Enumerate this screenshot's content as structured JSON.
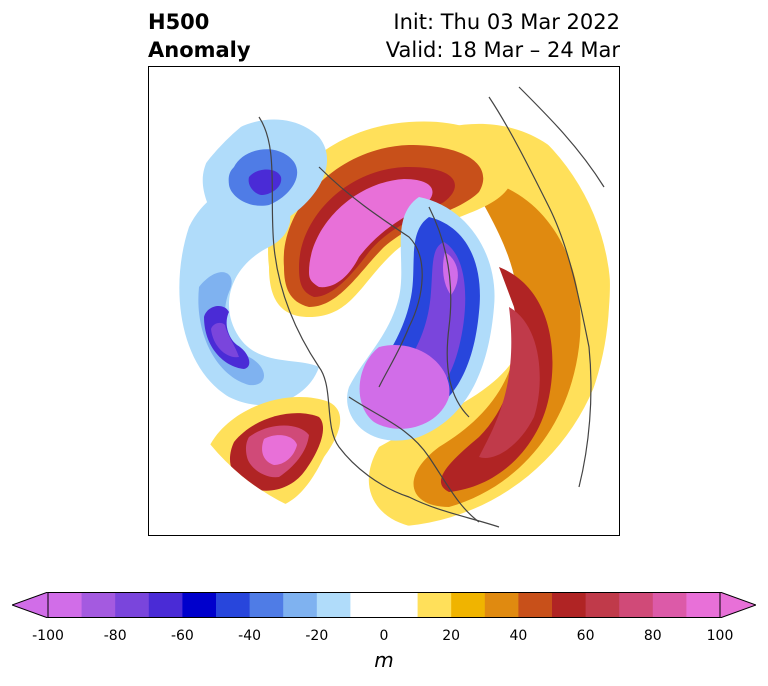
{
  "title": {
    "left_line1": "H500",
    "left_line2": "Anomaly",
    "right_line1": "Init: Thu 03 Mar 2022",
    "right_line2": "Valid: 18 Mar – 24 Mar"
  },
  "colorbar": {
    "unit": "m",
    "tick_labels": [
      "-100",
      "-80",
      "-60",
      "-40",
      "-20",
      "0",
      "20",
      "40",
      "60",
      "80",
      "100"
    ],
    "colors": [
      "#d16de8",
      "#a45ae0",
      "#7a45dc",
      "#4a2bd6",
      "#0000cc",
      "#2846dc",
      "#4f7ce6",
      "#7fb2f0",
      "#b0dcfa",
      "#ffffff",
      "#ffffff",
      "#ffe05a",
      "#f0b400",
      "#e08a10",
      "#c8501a",
      "#b02424",
      "#c03a4a",
      "#d04a78",
      "#dc5aa8",
      "#e870d8"
    ]
  },
  "map": {
    "projection": "north-polar-stereographic",
    "field": "500 hPa geopotential height anomaly",
    "features": [
      {
        "name": "positive-anomaly-western-canada",
        "sign": "positive"
      },
      {
        "name": "negative-anomaly-eastern-siberia",
        "sign": "negative"
      },
      {
        "name": "negative-anomaly-north-pacific",
        "sign": "negative"
      },
      {
        "name": "negative-anomaly-arctic-greenland",
        "sign": "negative"
      },
      {
        "name": "positive-anomaly-eurasia",
        "sign": "positive"
      },
      {
        "name": "positive-anomaly-north-pacific-east",
        "sign": "positive"
      },
      {
        "name": "positive-anomaly-north-atlantic",
        "sign": "positive"
      }
    ]
  }
}
